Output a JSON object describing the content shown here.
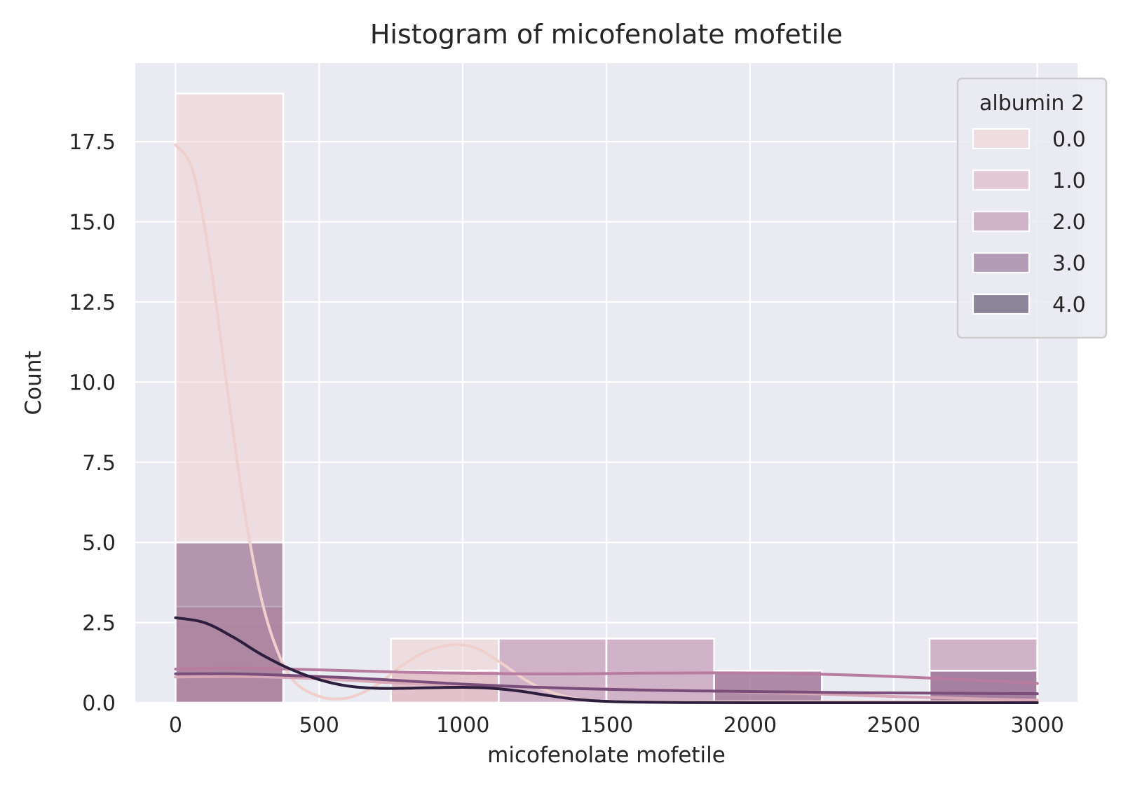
{
  "chart_data": {
    "type": "bar",
    "title": "Histogram of micofenolate mofetile",
    "xlabel": "micofenolate mofetile",
    "ylabel": "Count",
    "xlim": [
      -140,
      3140
    ],
    "ylim": [
      0,
      19.95
    ],
    "x_ticks": [
      0,
      500,
      1000,
      1500,
      2000,
      2500,
      3000
    ],
    "x_tick_labels": [
      "0",
      "500",
      "1000",
      "1500",
      "2000",
      "2500",
      "3000"
    ],
    "y_ticks": [
      0,
      2.5,
      5,
      7.5,
      10,
      12.5,
      15,
      17.5
    ],
    "y_tick_labels": [
      "0.0",
      "2.5",
      "5.0",
      "7.5",
      "10.0",
      "12.5",
      "15.0",
      "17.5"
    ],
    "grid": true,
    "stacking": "layered",
    "bin_edges": [
      0,
      375,
      750,
      1125,
      1500,
      1875,
      2250,
      2625,
      3000
    ],
    "legend": {
      "title": "albumin 2",
      "placement": "top-right"
    },
    "series": [
      {
        "name": "0.0",
        "color": "#efd0cd",
        "counts": [
          19,
          0,
          2,
          0,
          0,
          0,
          0,
          0
        ],
        "kde": [
          [
            0,
            17.4
          ],
          [
            60,
            16.6
          ],
          [
            120,
            13.8
          ],
          [
            180,
            9.8
          ],
          [
            240,
            6.0
          ],
          [
            300,
            3.2
          ],
          [
            360,
            1.5
          ],
          [
            420,
            0.6
          ],
          [
            500,
            0.2
          ],
          [
            560,
            0.12
          ],
          [
            620,
            0.2
          ],
          [
            700,
            0.55
          ],
          [
            780,
            1.1
          ],
          [
            860,
            1.55
          ],
          [
            940,
            1.78
          ],
          [
            1000,
            1.8
          ],
          [
            1060,
            1.65
          ],
          [
            1140,
            1.2
          ],
          [
            1220,
            0.7
          ],
          [
            1300,
            0.35
          ],
          [
            1400,
            0.12
          ],
          [
            1500,
            0.05
          ],
          [
            1700,
            0.03
          ],
          [
            2000,
            0.03
          ],
          [
            2500,
            0.03
          ],
          [
            3000,
            0.03
          ]
        ]
      },
      {
        "name": "1.0",
        "color": "#d9a8b8",
        "counts": [
          3,
          0,
          1,
          0,
          0,
          1,
          0,
          0
        ],
        "kde": [
          [
            0,
            0.8
          ],
          [
            200,
            0.82
          ],
          [
            400,
            0.78
          ],
          [
            600,
            0.7
          ],
          [
            800,
            0.6
          ],
          [
            1000,
            0.55
          ],
          [
            1200,
            0.5
          ],
          [
            1400,
            0.45
          ],
          [
            1600,
            0.42
          ],
          [
            1800,
            0.38
          ],
          [
            2000,
            0.33
          ],
          [
            2200,
            0.28
          ],
          [
            2400,
            0.22
          ],
          [
            2600,
            0.17
          ],
          [
            2800,
            0.12
          ],
          [
            3000,
            0.08
          ]
        ]
      },
      {
        "name": "2.0",
        "color": "#b77c9f",
        "counts": [
          0,
          0,
          0,
          2,
          2,
          0,
          0,
          2
        ],
        "kde": [
          [
            0,
            1.05
          ],
          [
            200,
            1.08
          ],
          [
            400,
            1.05
          ],
          [
            600,
            1.0
          ],
          [
            800,
            0.95
          ],
          [
            1000,
            0.92
          ],
          [
            1200,
            0.9
          ],
          [
            1400,
            0.9
          ],
          [
            1600,
            0.92
          ],
          [
            1800,
            0.93
          ],
          [
            2000,
            0.93
          ],
          [
            2200,
            0.9
          ],
          [
            2400,
            0.85
          ],
          [
            2600,
            0.78
          ],
          [
            2800,
            0.7
          ],
          [
            3000,
            0.6
          ]
        ]
      },
      {
        "name": "3.0",
        "color": "#7a4e7a",
        "counts": [
          5,
          0,
          0,
          0,
          0,
          1,
          0,
          1
        ],
        "kde": [
          [
            0,
            0.9
          ],
          [
            200,
            0.9
          ],
          [
            400,
            0.85
          ],
          [
            600,
            0.78
          ],
          [
            800,
            0.68
          ],
          [
            1000,
            0.58
          ],
          [
            1200,
            0.5
          ],
          [
            1400,
            0.44
          ],
          [
            1600,
            0.4
          ],
          [
            1800,
            0.37
          ],
          [
            2000,
            0.35
          ],
          [
            2200,
            0.33
          ],
          [
            2400,
            0.31
          ],
          [
            2600,
            0.3
          ],
          [
            2800,
            0.29
          ],
          [
            3000,
            0.28
          ]
        ]
      },
      {
        "name": "4.0",
        "color": "#2d1e3e",
        "counts": [
          0,
          0,
          0,
          0,
          0,
          0,
          0,
          0
        ],
        "kde": [
          [
            0,
            2.65
          ],
          [
            100,
            2.5
          ],
          [
            200,
            2.05
          ],
          [
            300,
            1.5
          ],
          [
            400,
            1.05
          ],
          [
            500,
            0.72
          ],
          [
            600,
            0.52
          ],
          [
            700,
            0.45
          ],
          [
            800,
            0.45
          ],
          [
            900,
            0.47
          ],
          [
            1000,
            0.48
          ],
          [
            1100,
            0.45
          ],
          [
            1200,
            0.36
          ],
          [
            1300,
            0.22
          ],
          [
            1400,
            0.1
          ],
          [
            1500,
            0.04
          ],
          [
            1700,
            0.01
          ],
          [
            2000,
            0.0
          ],
          [
            3000,
            0.0
          ]
        ]
      }
    ]
  }
}
